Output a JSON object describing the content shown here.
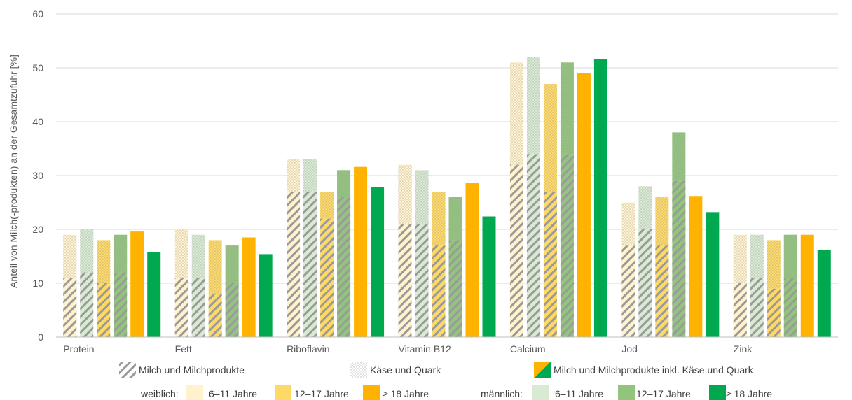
{
  "chart_data": {
    "type": "bar",
    "ylabel": "Anteil von Milch(-produkten) an der Gesamtzufuhr [%]",
    "ylim": [
      0,
      60
    ],
    "yticks": [
      0,
      10,
      20,
      30,
      40,
      50,
      60
    ],
    "grid": true,
    "categories": [
      "Protein",
      "Fett",
      "Riboflavin",
      "Vitamin B12",
      "Calcium",
      "Jod",
      "Zink"
    ],
    "series": [
      {
        "name": "6–11 Jahre",
        "group": "weiblich",
        "color": "#FFF2CC",
        "milch": [
          11,
          11,
          27,
          21,
          32,
          17,
          10
        ],
        "kaese": [
          8,
          9,
          6,
          11,
          19,
          8,
          9
        ],
        "gesamt": null
      },
      {
        "name": "6–11 Jahre",
        "group": "männlich",
        "color": "#D9EAD3",
        "milch": [
          12,
          11,
          27,
          21,
          34,
          20,
          11
        ],
        "kaese": [
          8,
          8,
          6,
          10,
          18,
          8,
          8
        ],
        "gesamt": null
      },
      {
        "name": "12–17 Jahre",
        "group": "weiblich",
        "color": "#FFD966",
        "milch": [
          10,
          8,
          22,
          17,
          27,
          17,
          9
        ],
        "kaese": [
          8,
          10,
          5,
          10,
          20,
          9,
          9
        ],
        "gesamt": null
      },
      {
        "name": "12–17 Jahre",
        "group": "männlich",
        "color": "#93C47D",
        "milch": [
          12,
          10,
          26,
          18,
          34,
          29,
          11
        ],
        "kaese": [
          7,
          7,
          5,
          8,
          17,
          9,
          8
        ],
        "gesamt": null
      },
      {
        "name": "≥ 18 Jahre",
        "group": "weiblich",
        "color": "#FFB300",
        "milch": null,
        "kaese": null,
        "gesamt": [
          19.6,
          18.5,
          31.6,
          28.6,
          49,
          26.2,
          19
        ]
      },
      {
        "name": "≥ 18 Jahre",
        "group": "männlich",
        "color": "#00A94F",
        "milch": null,
        "kaese": null,
        "gesamt": [
          15.8,
          15.4,
          27.8,
          22.4,
          51.6,
          23.2,
          16.2
        ]
      }
    ],
    "legend": {
      "placement": "bottom",
      "patterns": [
        "Milch und Milchprodukte",
        "Käse und Quark",
        "Milch und Milchprodukte inkl. Käse und Quark"
      ],
      "group_labels": [
        "weiblich:",
        "männlich:"
      ],
      "age_labels": [
        "6–11 Jahre",
        "12–17 Jahre",
        "≥ 18 Jahre"
      ]
    }
  }
}
